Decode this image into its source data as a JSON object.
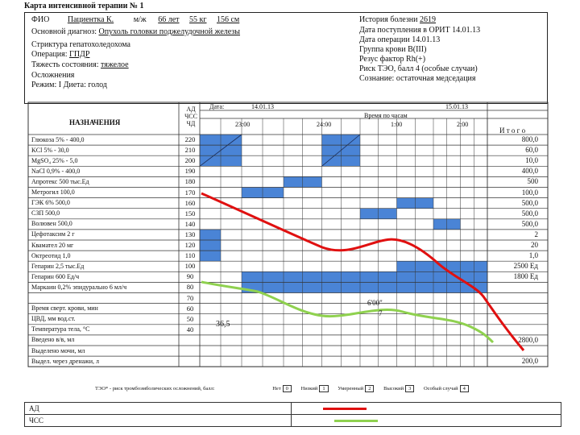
{
  "title": "Карта интенсивной терапии № 1",
  "patient": {
    "l1": [
      "ФИО",
      "Пациентка К.",
      "м/ж",
      "66 лет",
      "55 кг",
      "156 см"
    ],
    "l2": [
      "Основной диагноз:",
      "Опухоль головки поджелудочной железы"
    ],
    "l3": "Стриктура гепатохоледохома",
    "l4": [
      "Операция:",
      "ГПДР"
    ],
    "l5": [
      "Тяжесть состояния:",
      "тяжелое"
    ],
    "l6": "Осложнения",
    "l7": "Режим: I  Диета: голод"
  },
  "history": {
    "h1": [
      "История болезни",
      "2619"
    ],
    "h2": "Дата поступления в ОРИТ 14.01.13",
    "h3": "Дата операции 14.01.13",
    "h4": "Группа крови В(III)",
    "h5": "Резус фактор Rh(+)",
    "h6": "Риск ТЭО, балл 4 (особые случаи)",
    "h7": "Сознание: остаточная медседация"
  },
  "table": {
    "heading": "НАЗНАЧЕНИЯ",
    "vitals_head": [
      "АД",
      "ЧСС",
      "ЧД"
    ],
    "date_label": "Дата:",
    "date1": "14.01.13",
    "date2": "15.01.13",
    "time_label": "Время по часам",
    "times": [
      "23:00",
      "24:00",
      "1:00",
      "2:00"
    ],
    "itogo": "И т о г о",
    "scale": [
      "220",
      "210",
      "200",
      "190",
      "180",
      "170",
      "160",
      "150",
      "140",
      "130",
      "120",
      "110",
      "100",
      "90",
      "80",
      "70",
      "60",
      "50",
      "40"
    ],
    "rows": [
      {
        "label": "Глюкоза 5% - 400,0",
        "total": "800,0"
      },
      {
        "label": "KCl 5% - 30,0",
        "total": "60,0"
      },
      {
        "label": "MgSO₄ 25% - 5,0",
        "total": "10,0"
      },
      {
        "label": "NaCl 0,9% - 400,0",
        "total": "400,0"
      },
      {
        "label": "Апротекс 500 тыс.Ед",
        "total": "500"
      },
      {
        "label": "Метрогил 100,0",
        "total": "100,0"
      },
      {
        "label": "ГЭК 6% 500,0",
        "total": "500,0"
      },
      {
        "label": "СЗП 500,0",
        "total": "500,0"
      },
      {
        "label": "Волювен 500,0",
        "total": "500,0"
      },
      {
        "label": "Цефотаксим 2 г",
        "total": "2"
      },
      {
        "label": "Квамател 20 мг",
        "total": "20"
      },
      {
        "label": "Октреотид 1,0",
        "total": "1,0"
      },
      {
        "label": "Гепарин 2,5 тыс.Ед",
        "total": "2500 Ед"
      },
      {
        "label": "Гепарин 600 Ед/ч",
        "total": "1800 Ед"
      },
      {
        "label": "Маркаин 0,2% эпидурально 6 мл/ч",
        "total": ""
      },
      {
        "label": "",
        "total": ""
      },
      {
        "label": "Время сверт. крови, мин",
        "total": ""
      },
      {
        "label": "ЦВД, мм вод.ст.",
        "total": ""
      },
      {
        "label": "Температура тела, °С",
        "total": ""
      },
      {
        "label": "Введено в/в, мл",
        "total": "2800,0"
      },
      {
        "label": "Выделено мочи, мл",
        "total": ""
      },
      {
        "label": "Выдел. через дренажи, л",
        "total": "200,0"
      }
    ],
    "clot_time": "6'00\"",
    "cvp": "7",
    "temp": "36,5"
  },
  "footer": {
    "risk_label": "ТЭО* - риск тромбоэмболических осложнений, балл:",
    "levels": [
      {
        "name": "Нет",
        "val": "0"
      },
      {
        "name": "Низкий",
        "val": "1"
      },
      {
        "name": "Умеренный",
        "val": "2"
      },
      {
        "name": "Высокий",
        "val": "3"
      },
      {
        "name": "Особый случай",
        "val": "4"
      }
    ]
  },
  "legend": {
    "ad": "АД",
    "chss": "ЧСС",
    "ad_color": "#e01010",
    "chss_color": "#8fd14f"
  },
  "colors": {
    "block": "#4a84d6",
    "grid": "#333333"
  }
}
